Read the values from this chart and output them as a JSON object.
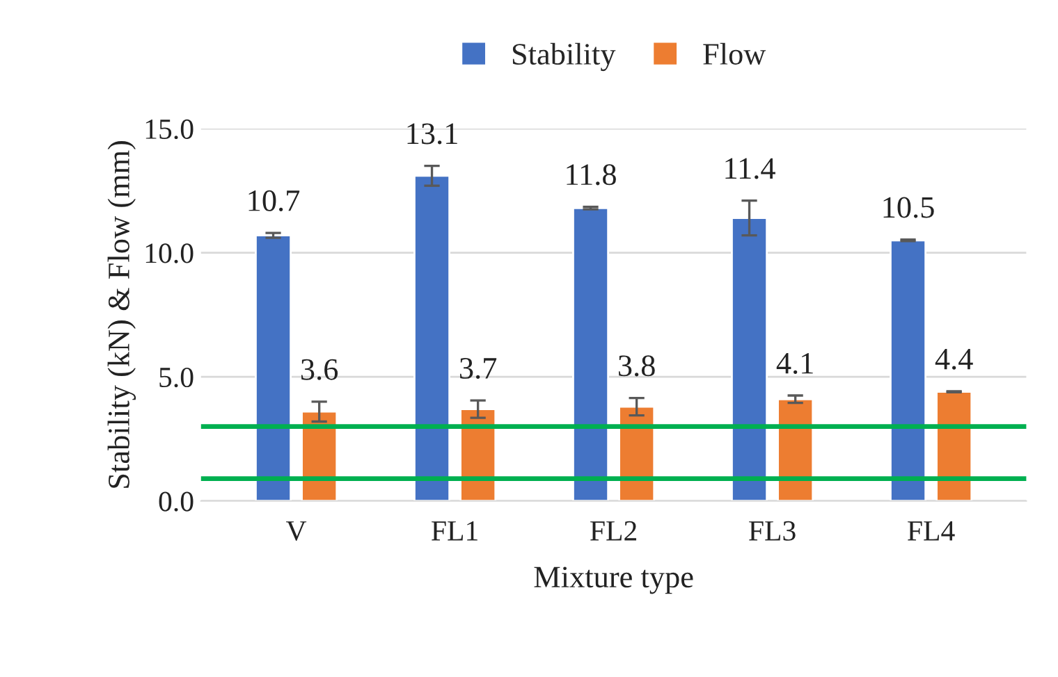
{
  "chart_data": {
    "type": "bar",
    "xlabel": "Mixture type",
    "ylabel": "Stability (kN) & Flow (mm)",
    "categories": [
      "V",
      "FL1",
      "FL2",
      "FL3",
      "FL4"
    ],
    "series": [
      {
        "name": "Stability",
        "color": "#4472c4",
        "values": [
          10.7,
          13.1,
          11.8,
          11.4,
          10.5
        ],
        "errors": [
          0.1,
          0.4,
          0.05,
          0.7,
          0.03
        ]
      },
      {
        "name": "Flow",
        "color": "#ed7d31",
        "values": [
          3.6,
          3.7,
          3.8,
          4.1,
          4.4
        ],
        "errors": [
          0.4,
          0.35,
          0.35,
          0.15,
          0.02
        ]
      }
    ],
    "ylim": [
      0,
      15
    ],
    "yticks": [
      {
        "value": 0,
        "label": "0.0"
      },
      {
        "value": 5,
        "label": "5.0"
      },
      {
        "value": 10,
        "label": "10.0"
      },
      {
        "value": 15,
        "label": "15.0"
      }
    ],
    "ref_lines": [
      {
        "axis": "y",
        "value": 3.0,
        "color": "#00b050"
      },
      {
        "axis": "y",
        "value": 0.9,
        "color": "#00b050"
      }
    ],
    "data_labels": true,
    "grid": "y",
    "legend": "top"
  }
}
